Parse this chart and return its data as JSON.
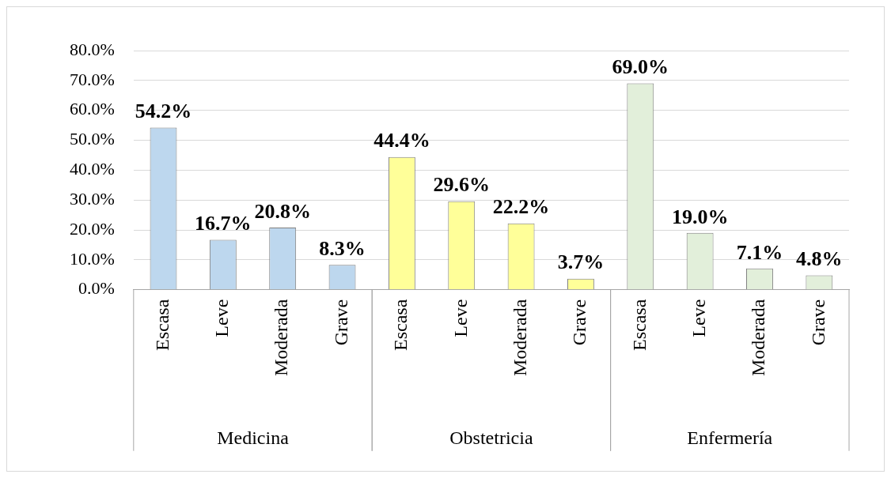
{
  "chart_data": {
    "type": "bar",
    "categories": [
      "Escasa",
      "Leve",
      "Moderada",
      "Grave",
      "Escasa",
      "Leve",
      "Moderada",
      "Grave",
      "Escasa",
      "Leve",
      "Moderada",
      "Grave"
    ],
    "values": [
      54.2,
      16.7,
      20.8,
      8.3,
      44.4,
      29.6,
      22.2,
      3.7,
      69.0,
      19.0,
      7.1,
      4.8
    ],
    "colors": [
      "#bdd7ee",
      "#bdd7ee",
      "#bdd7ee",
      "#bdd7ee",
      "#ffff99",
      "#ffff99",
      "#ffff99",
      "#ffff99",
      "#e2efda",
      "#e2efda",
      "#e2efda",
      "#e2efda"
    ],
    "value_labels": [
      "54.2%",
      "16.7%",
      "20.8%",
      "8.3%",
      "44.4%",
      "29.6%",
      "22.2%",
      "3.7%",
      "69.0%",
      "19.0%",
      "7.1%",
      "4.8%"
    ],
    "annotations": [
      "Medicina",
      "Obstetricia",
      "Enfermería"
    ],
    "ylim": [
      0,
      80
    ],
    "yticks": [
      {
        "value": 0,
        "label": "0.0%"
      },
      {
        "value": 10,
        "label": "10.0%"
      },
      {
        "value": 20,
        "label": "20.0%"
      },
      {
        "value": 30,
        "label": "30.0%"
      },
      {
        "value": 40,
        "label": "40.0%"
      },
      {
        "value": 50,
        "label": "50.0%"
      },
      {
        "value": 60,
        "label": "60.0%"
      },
      {
        "value": 70,
        "label": "70.0%"
      },
      {
        "value": 80,
        "label": "80.0%"
      }
    ],
    "grid": "y",
    "legend": false
  }
}
